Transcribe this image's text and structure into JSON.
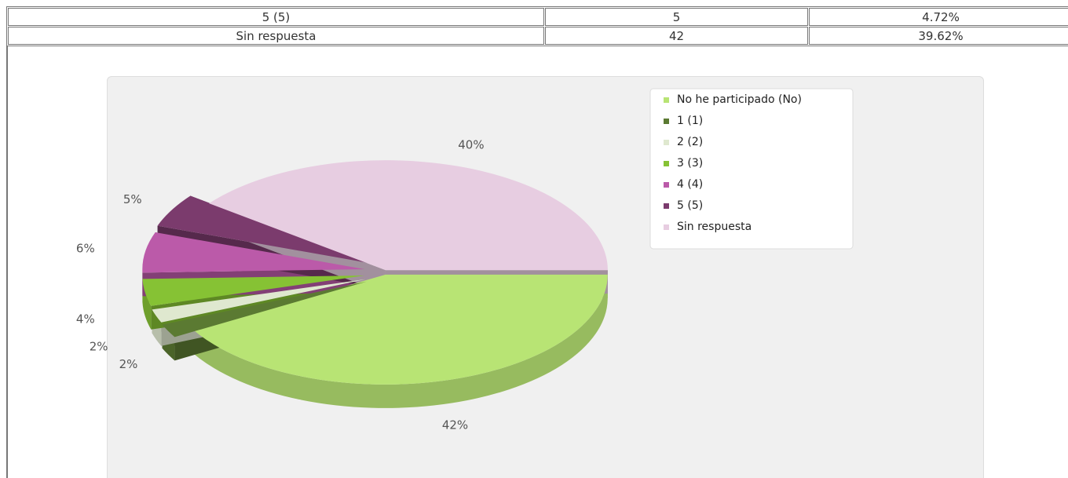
{
  "table": {
    "rows": [
      [
        "5 (5)",
        "5",
        "4.72%"
      ],
      [
        "Sin respuesta",
        "42",
        "39.62%"
      ]
    ]
  },
  "chart_data": {
    "type": "pie",
    "categories": [
      "No he participado (No)",
      "1 (1)",
      "2 (2)",
      "3 (3)",
      "4 (4)",
      "5 (5)",
      "Sin respuesta"
    ],
    "values": [
      42,
      2,
      2,
      4,
      6,
      5,
      40
    ],
    "value_labels": [
      "42%",
      "2%",
      "2%",
      "4%",
      "6%",
      "5%",
      "40%"
    ],
    "colors": [
      "#b8e474",
      "#5b7a32",
      "#dfe8cf",
      "#86c234",
      "#bb5aa9",
      "#7b3b6d",
      "#e7cde1"
    ],
    "legend": "top-right"
  }
}
